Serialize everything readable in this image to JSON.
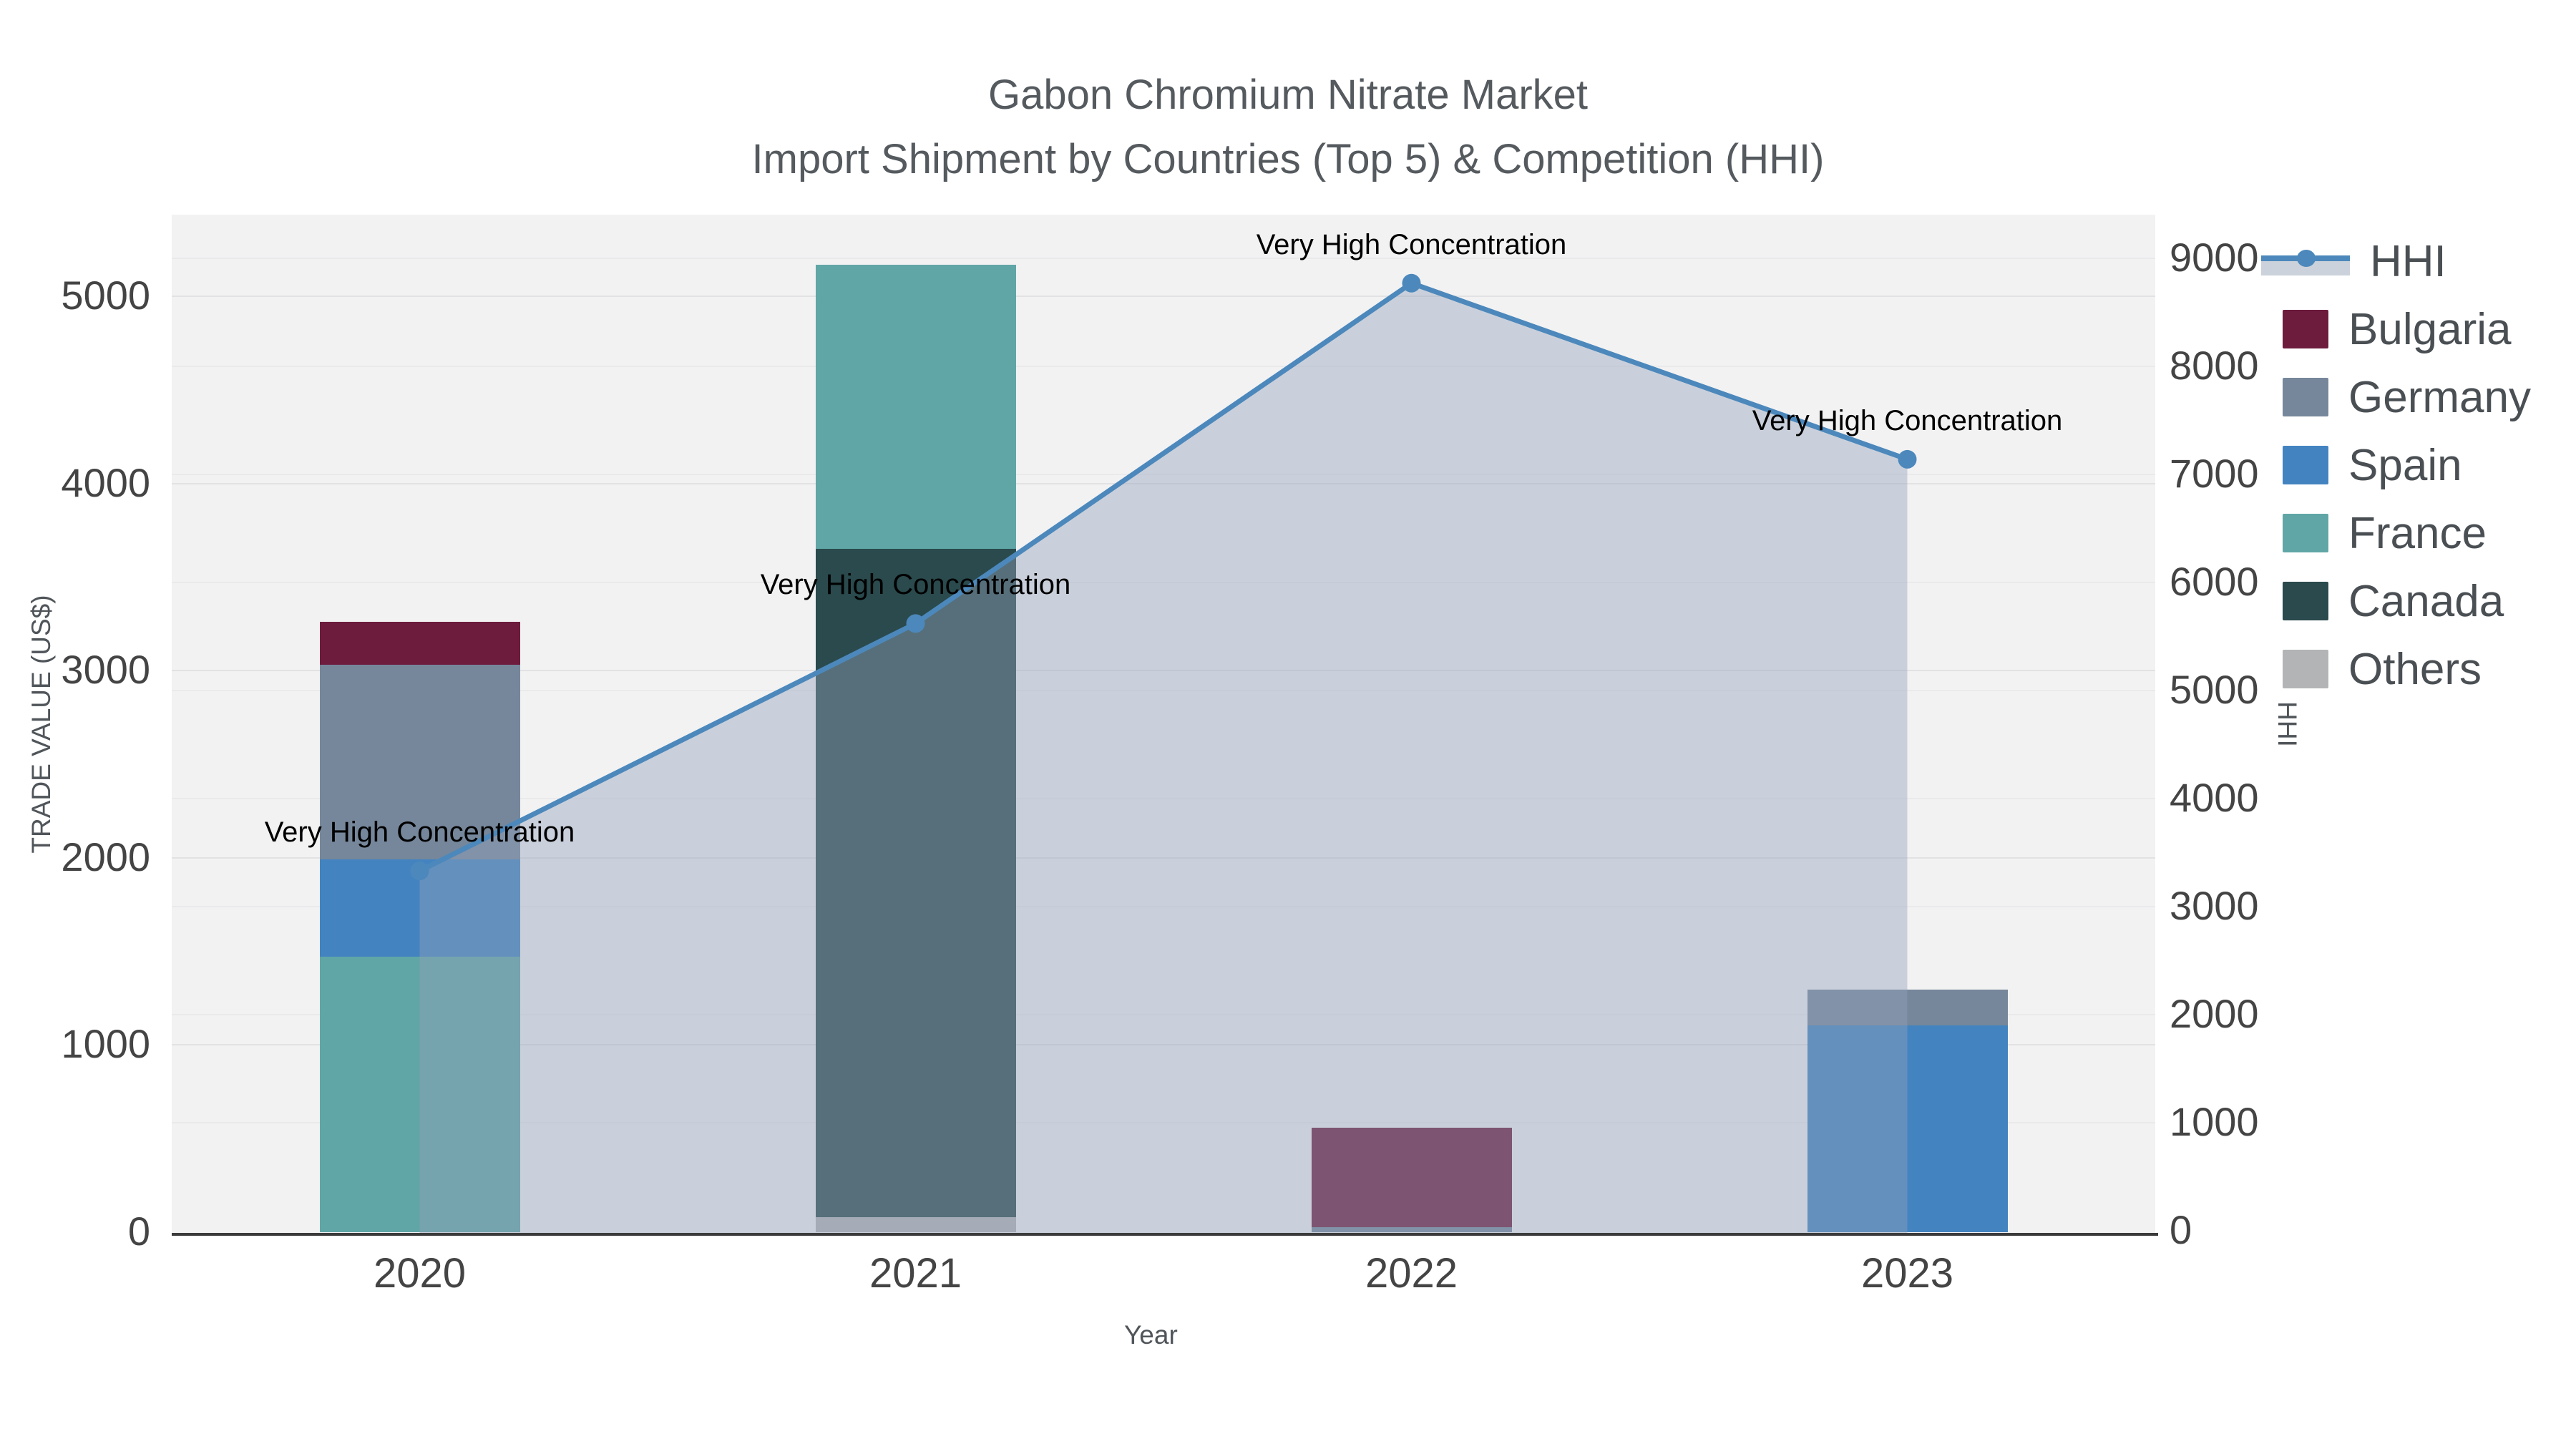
{
  "title": {
    "line1": "Gabon Chromium Nitrate Market",
    "line2": "Import Shipment by Countries (Top 5) & Competition (HHI)"
  },
  "axes": {
    "left": {
      "title": "TRADE VALUE (US$)",
      "ticks": [
        0,
        1000,
        2000,
        3000,
        4000,
        5000
      ]
    },
    "right": {
      "title": "HHI",
      "ticks": [
        0,
        1000,
        2000,
        3000,
        4000,
        5000,
        6000,
        7000,
        8000,
        9000
      ]
    },
    "x": {
      "title": "Year"
    }
  },
  "annotation_text": "Very High Concentration",
  "colors": {
    "hhi_line": "#4c88bb",
    "hhi_area": "rgba(148,161,186,0.42)",
    "plot_bg": "#f2f2f3",
    "axis_line": "#3b3b3b",
    "Bulgaria": "#6d1c3e",
    "Germany": "#76879b",
    "Spain": "#4384c0",
    "France": "#60a6a6",
    "Canada": "#2a4a4d",
    "Others": "#b2b4b6"
  },
  "legend": {
    "items": [
      {
        "label": "HHI",
        "type": "line-area"
      },
      {
        "label": "Bulgaria",
        "type": "swatch"
      },
      {
        "label": "Germany",
        "type": "swatch"
      },
      {
        "label": "Spain",
        "type": "swatch"
      },
      {
        "label": "France",
        "type": "swatch"
      },
      {
        "label": "Canada",
        "type": "swatch"
      },
      {
        "label": "Others",
        "type": "swatch"
      }
    ]
  },
  "chart_data": {
    "type": "combo",
    "subtype": "stacked-bar + line-area",
    "categories": [
      "2020",
      "2021",
      "2022",
      "2023"
    ],
    "bar_stack_order_bottom_to_top": [
      "Others",
      "Canada",
      "France",
      "Spain",
      "Germany",
      "Bulgaria"
    ],
    "series": [
      {
        "name": "Bulgaria",
        "type": "bar",
        "axis": "left",
        "values": [
          230,
          0,
          535,
          0
        ]
      },
      {
        "name": "Germany",
        "type": "bar",
        "axis": "left",
        "values": [
          1040,
          0,
          25,
          190
        ]
      },
      {
        "name": "Spain",
        "type": "bar",
        "axis": "left",
        "values": [
          520,
          0,
          0,
          1105
        ]
      },
      {
        "name": "France",
        "type": "bar",
        "axis": "left",
        "values": [
          1470,
          1520,
          0,
          0
        ]
      },
      {
        "name": "Canada",
        "type": "bar",
        "axis": "left",
        "values": [
          0,
          3570,
          0,
          0
        ]
      },
      {
        "name": "Others",
        "type": "bar",
        "axis": "left",
        "values": [
          0,
          80,
          0,
          0
        ]
      },
      {
        "name": "HHI",
        "type": "line-area",
        "axis": "right",
        "values": [
          3330,
          5620,
          8770,
          7140
        ]
      }
    ],
    "annotations": [
      {
        "text": "Very High Concentration",
        "category": "2020",
        "hhi": 3330
      },
      {
        "text": "Very High Concentration",
        "category": "2021",
        "hhi": 5620
      },
      {
        "text": "Very High Concentration",
        "category": "2022",
        "hhi": 8770
      },
      {
        "text": "Very High Concentration",
        "category": "2023",
        "hhi": 7140
      }
    ],
    "title": "Gabon Chromium Nitrate Market — Import Shipment by Countries (Top 5) & Competition (HHI)",
    "xlabel": "Year",
    "ylabel_left": "TRADE VALUE (US$)",
    "ylabel_right": "HHI",
    "ylim_left": [
      0,
      5450
    ],
    "ylim_right": [
      0,
      9400
    ],
    "grid": true,
    "legend_position": "right"
  }
}
